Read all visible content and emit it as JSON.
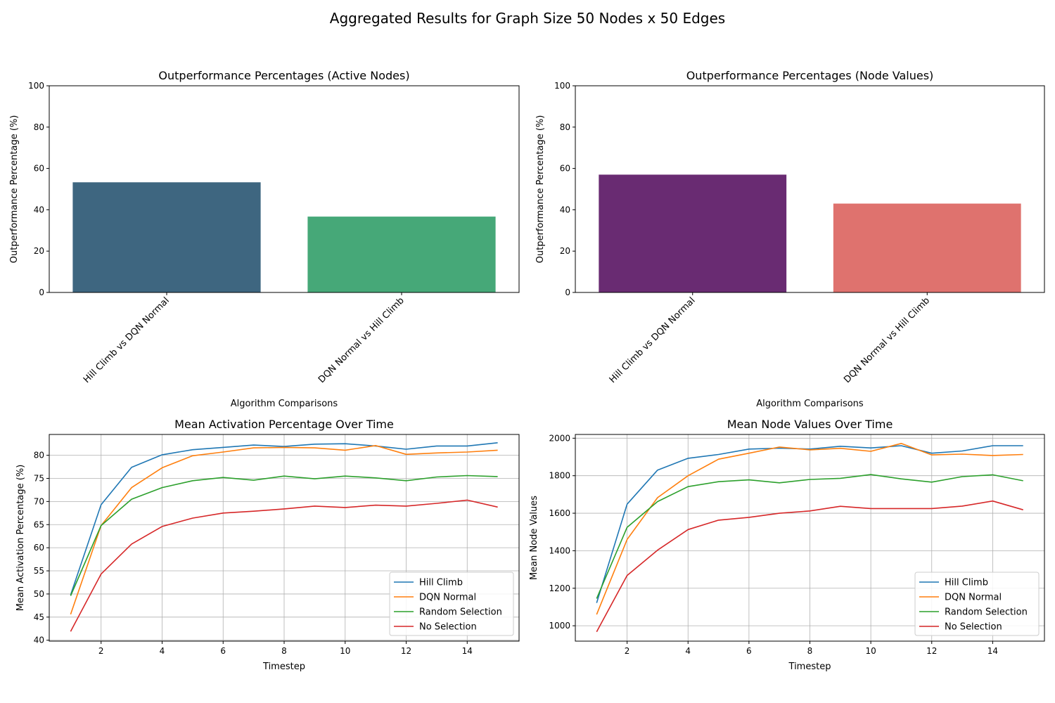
{
  "figure": {
    "suptitle": "Aggregated Results for Graph Size 50 Nodes x 50 Edges"
  },
  "chart_data": [
    {
      "type": "bar",
      "title": "Outperformance Percentages (Active Nodes)",
      "xlabel": "Algorithm Comparisons",
      "ylabel": "Outperformance Percentage (%)",
      "categories": [
        "Hill Climb vs DQN Normal",
        "DQN Normal vs Hill Climb"
      ],
      "values": [
        53.3,
        36.7
      ],
      "colors": [
        "#3e6680",
        "#46a878"
      ],
      "ylim": [
        0,
        100
      ],
      "yticks": [
        0,
        20,
        40,
        60,
        80,
        100
      ],
      "grid": false
    },
    {
      "type": "bar",
      "title": "Outperformance Percentages (Node Values)",
      "xlabel": "Algorithm Comparisons",
      "ylabel": "Outperformance Percentage (%)",
      "categories": [
        "Hill Climb vs DQN Normal",
        "DQN Normal vs Hill Climb"
      ],
      "values": [
        57.0,
        43.0
      ],
      "colors": [
        "#692b72",
        "#df726e"
      ],
      "ylim": [
        0,
        100
      ],
      "yticks": [
        0,
        20,
        40,
        60,
        80,
        100
      ],
      "grid": false
    },
    {
      "type": "line",
      "title": "Mean Activation Percentage Over Time",
      "xlabel": "Timestep",
      "ylabel": "Mean Activation Percentage (%)",
      "x": [
        1,
        2,
        3,
        4,
        5,
        6,
        7,
        8,
        9,
        10,
        11,
        12,
        13,
        14,
        15
      ],
      "xlim": [
        0.3,
        15.7
      ],
      "ylim": [
        39.8,
        84.5
      ],
      "xticks": [
        2,
        4,
        6,
        8,
        10,
        12,
        14
      ],
      "yticks": [
        40,
        45,
        50,
        55,
        60,
        65,
        70,
        75,
        80
      ],
      "grid": true,
      "legend": "lower right",
      "series": [
        {
          "name": "Hill Climb",
          "color": "#1f77b4",
          "values": [
            49.8,
            69.3,
            77.4,
            80.1,
            81.2,
            81.7,
            82.2,
            81.9,
            82.4,
            82.5,
            82.0,
            81.3,
            82.0,
            82.0,
            82.7
          ]
        },
        {
          "name": "DQN Normal",
          "color": "#ff7f0e",
          "values": [
            45.6,
            64.8,
            73.0,
            77.3,
            79.9,
            80.7,
            81.6,
            81.7,
            81.6,
            81.1,
            82.1,
            80.2,
            80.5,
            80.7,
            81.1
          ]
        },
        {
          "name": "Random Selection",
          "color": "#2ca02c",
          "values": [
            49.6,
            64.8,
            70.5,
            73.0,
            74.5,
            75.2,
            74.6,
            75.5,
            74.9,
            75.5,
            75.1,
            74.5,
            75.3,
            75.6,
            75.4
          ]
        },
        {
          "name": "No Selection",
          "color": "#d62728",
          "values": [
            41.9,
            54.3,
            60.8,
            64.6,
            66.4,
            67.5,
            67.9,
            68.4,
            69.0,
            68.7,
            69.2,
            69.0,
            69.6,
            70.3,
            68.8
          ]
        }
      ]
    },
    {
      "type": "line",
      "title": "Mean Node Values Over Time",
      "xlabel": "Timestep",
      "ylabel": "Mean Node Values",
      "x": [
        1,
        2,
        3,
        4,
        5,
        6,
        7,
        8,
        9,
        10,
        11,
        12,
        13,
        14,
        15
      ],
      "xlim": [
        0.3,
        15.7
      ],
      "ylim": [
        918,
        2020
      ],
      "xticks": [
        2,
        4,
        6,
        8,
        10,
        12,
        14
      ],
      "yticks": [
        1000,
        1200,
        1400,
        1600,
        1800,
        2000
      ],
      "grid": true,
      "legend": "lower right",
      "series": [
        {
          "name": "Hill Climb",
          "color": "#1f77b4",
          "values": [
            1122,
            1648,
            1830,
            1893,
            1913,
            1942,
            1947,
            1942,
            1957,
            1948,
            1960,
            1920,
            1932,
            1960,
            1960
          ]
        },
        {
          "name": "DQN Normal",
          "color": "#ff7f0e",
          "values": [
            1060,
            1460,
            1683,
            1800,
            1888,
            1920,
            1953,
            1938,
            1946,
            1930,
            1972,
            1911,
            1915,
            1908,
            1913
          ]
        },
        {
          "name": "Random Selection",
          "color": "#2ca02c",
          "values": [
            1145,
            1525,
            1662,
            1742,
            1768,
            1778,
            1762,
            1780,
            1786,
            1806,
            1783,
            1766,
            1795,
            1805,
            1773
          ]
        },
        {
          "name": "No Selection",
          "color": "#d62728",
          "values": [
            968,
            1268,
            1403,
            1513,
            1563,
            1578,
            1600,
            1612,
            1637,
            1625,
            1625,
            1625,
            1638,
            1665,
            1618
          ]
        }
      ]
    }
  ]
}
